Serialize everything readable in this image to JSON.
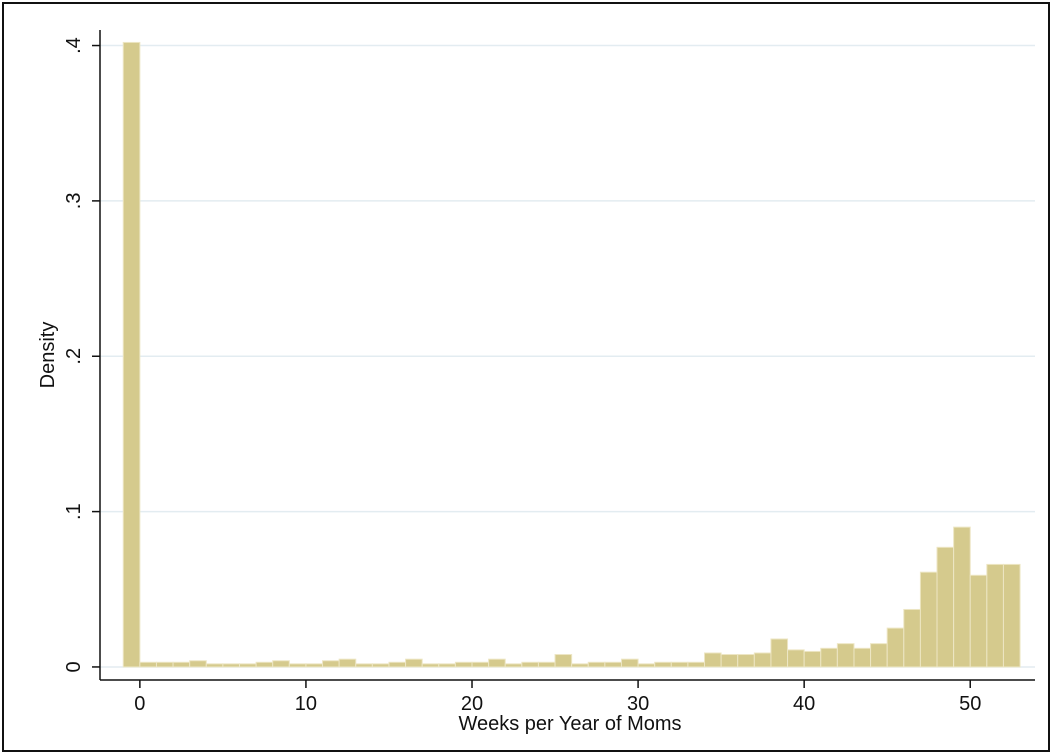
{
  "chart_data": {
    "type": "histogram",
    "xlabel": "Weeks per Year of Moms",
    "ylabel": "Density",
    "bins": [
      -1,
      0,
      1,
      2,
      3,
      4,
      5,
      6,
      7,
      8,
      9,
      10,
      11,
      12,
      13,
      14,
      15,
      16,
      17,
      18,
      19,
      20,
      21,
      22,
      23,
      24,
      25,
      26,
      27,
      28,
      29,
      30,
      31,
      32,
      33,
      34,
      35,
      36,
      37,
      38,
      39,
      40,
      41,
      42,
      43,
      44,
      45,
      46,
      47,
      48,
      49,
      50,
      51,
      52,
      53
    ],
    "values": [
      0.402,
      0.003,
      0.003,
      0.003,
      0.004,
      0.002,
      0.002,
      0.002,
      0.003,
      0.004,
      0.002,
      0.002,
      0.004,
      0.005,
      0.002,
      0.002,
      0.003,
      0.005,
      0.002,
      0.002,
      0.003,
      0.003,
      0.005,
      0.002,
      0.003,
      0.003,
      0.008,
      0.002,
      0.003,
      0.003,
      0.005,
      0.002,
      0.003,
      0.003,
      0.003,
      0.009,
      0.008,
      0.008,
      0.009,
      0.018,
      0.011,
      0.01,
      0.012,
      0.015,
      0.012,
      0.015,
      0.025,
      0.037,
      0.061,
      0.077,
      0.09,
      0.059,
      0.066,
      0.066
    ],
    "color": "#d5ca8d",
    "xlim": [
      -2.4,
      53.9
    ],
    "ylim": [
      -0.0084,
      0.41
    ],
    "xticks": [
      0,
      10,
      20,
      30,
      40,
      50
    ],
    "yticks": [
      0,
      {
        "value": 0.1,
        "label": ".1"
      },
      {
        "value": 0.2,
        "label": ".2"
      },
      {
        "value": 0.3,
        "label": ".3"
      },
      {
        "value": 0.4,
        "label": ".4"
      }
    ],
    "grid": true
  }
}
